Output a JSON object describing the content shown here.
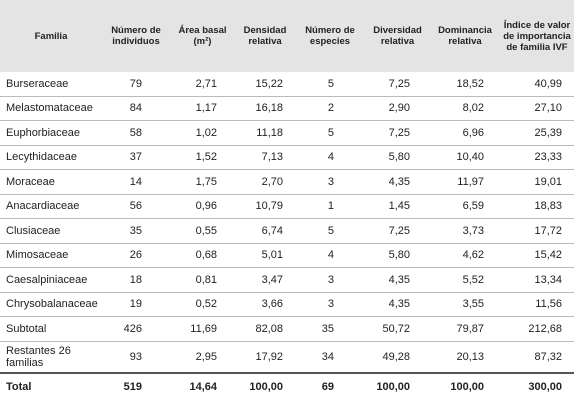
{
  "table": {
    "columns": [
      "Familia",
      "Número de individuos",
      "Área basal (m²)",
      "Densidad relativa",
      "Número de especies",
      "Diversidad relativa",
      "Dominancia relativa",
      "Índice de valor de importancia de familia IVF"
    ],
    "rows": [
      [
        "Burseraceae",
        "79",
        "2,71",
        "15,22",
        "5",
        "7,25",
        "18,52",
        "40,99"
      ],
      [
        "Melastomataceae",
        "84",
        "1,17",
        "16,18",
        "2",
        "2,90",
        "8,02",
        "27,10"
      ],
      [
        "Euphorbiaceae",
        "58",
        "1,02",
        "11,18",
        "5",
        "7,25",
        "6,96",
        "25,39"
      ],
      [
        "Lecythidaceae",
        "37",
        "1,52",
        "7,13",
        "4",
        "5,80",
        "10,40",
        "23,33"
      ],
      [
        "Moraceae",
        "14",
        "1,75",
        "2,70",
        "3",
        "4,35",
        "11,97",
        "19,01"
      ],
      [
        "Anacardiaceae",
        "56",
        "0,96",
        "10,79",
        "1",
        "1,45",
        "6,59",
        "18,83"
      ],
      [
        "Clusiaceae",
        "35",
        "0,55",
        "6,74",
        "5",
        "7,25",
        "3,73",
        "17,72"
      ],
      [
        "Mimosaceae",
        "26",
        "0,68",
        "5,01",
        "4",
        "5,80",
        "4,62",
        "15,42"
      ],
      [
        "Caesalpiniaceae",
        "18",
        "0,81",
        "3,47",
        "3",
        "4,35",
        "5,52",
        "13,34"
      ],
      [
        "Chrysobalanaceae",
        "19",
        "0,52",
        "3,66",
        "3",
        "4,35",
        "3,55",
        "11,56"
      ],
      [
        "Subtotal",
        "426",
        "11,69",
        "82,08",
        "35",
        "50,72",
        "79,87",
        "212,68"
      ],
      [
        "Restantes 26 familias",
        "93",
        "2,95",
        "17,92",
        "34",
        "49,28",
        "20,13",
        "87,32"
      ]
    ],
    "total": [
      "Total",
      "519",
      "14,64",
      "100,00",
      "69",
      "100,00",
      "100,00",
      "300,00"
    ]
  }
}
